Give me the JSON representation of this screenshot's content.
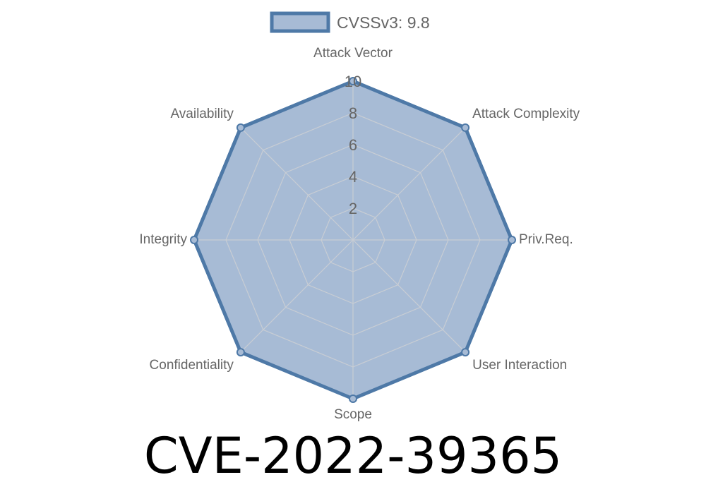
{
  "chart_data": {
    "type": "radar",
    "title": "CVE-2022-39365",
    "categories": [
      "Attack Vector",
      "Attack Complexity",
      "Priv.Req.",
      "User Interaction",
      "Scope",
      "Confidentiality",
      "Integrity",
      "Availability"
    ],
    "series": [
      {
        "name": "CVSSv3: 9.8",
        "values": [
          10,
          10,
          10,
          10,
          10,
          10,
          10,
          10
        ]
      }
    ],
    "rlim": [
      0,
      10
    ],
    "ticks": [
      "2",
      "4",
      "6",
      "8",
      "10"
    ],
    "tick_values": [
      2,
      4,
      6,
      8,
      10
    ],
    "grid": true,
    "legend": "top",
    "colors": {
      "fill": "#a7bbd5",
      "stroke": "#4e79a7",
      "grid": "#c8cdd4"
    }
  }
}
